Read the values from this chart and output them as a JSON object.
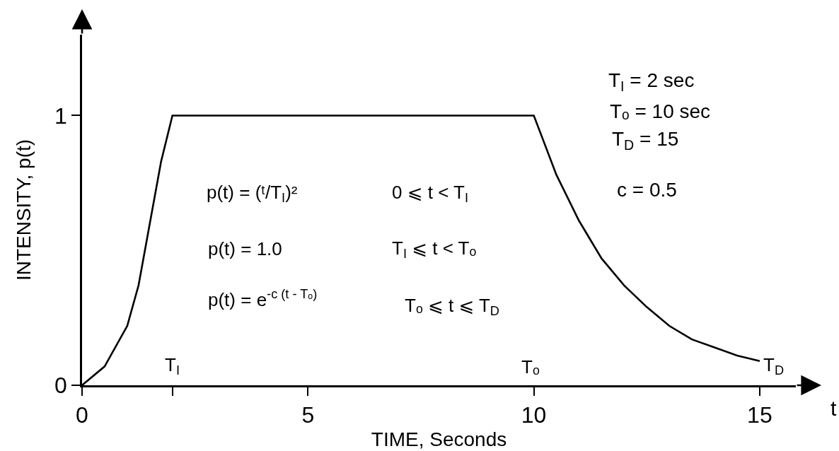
{
  "chart_data": {
    "type": "line",
    "xlabel": "TIME, Seconds",
    "ylabel": "INTENSITY, p(t)",
    "x": [
      0,
      0.5,
      1,
      1.25,
      1.5,
      1.75,
      2,
      10,
      10.5,
      11,
      11.5,
      12,
      12.5,
      13,
      13.5,
      14,
      14.5,
      15
    ],
    "series": [
      {
        "color": "#000000",
        "values": [
          0,
          0.07,
          0.22,
          0.37,
          0.6,
          0.83,
          1,
          1,
          0.78,
          0.61,
          0.47,
          0.37,
          0.29,
          0.22,
          0.17,
          0.14,
          0.11,
          0.09
        ]
      }
    ],
    "xlim": [
      0,
      15.8
    ],
    "ylim": [
      0,
      1.3
    ],
    "xticks": [
      0,
      {
        "value": 2,
        "label": null
      },
      5,
      10,
      15
    ],
    "yticks": [
      0,
      1
    ],
    "line_style": "solid",
    "annotations": [
      "p(t) = (ᵗ/T$_{I}$)²",
      "0 ⩽ t < T$_{I}$",
      "p(t) = 1.0",
      "T$_{I}$ ⩽ t < Tₒ",
      "p(t) = e$^{-c (t - Tₒ)}$",
      "Tₒ ⩽ t ⩽ T$_{D}$",
      "T$_{I}$ = 2 sec",
      "Tₒ = 10 sec",
      "T$_{D}$ = 15",
      "c = 0.5",
      "t",
      "T$_{I}$",
      "Tₒ",
      "T$_{D}$"
    ]
  }
}
